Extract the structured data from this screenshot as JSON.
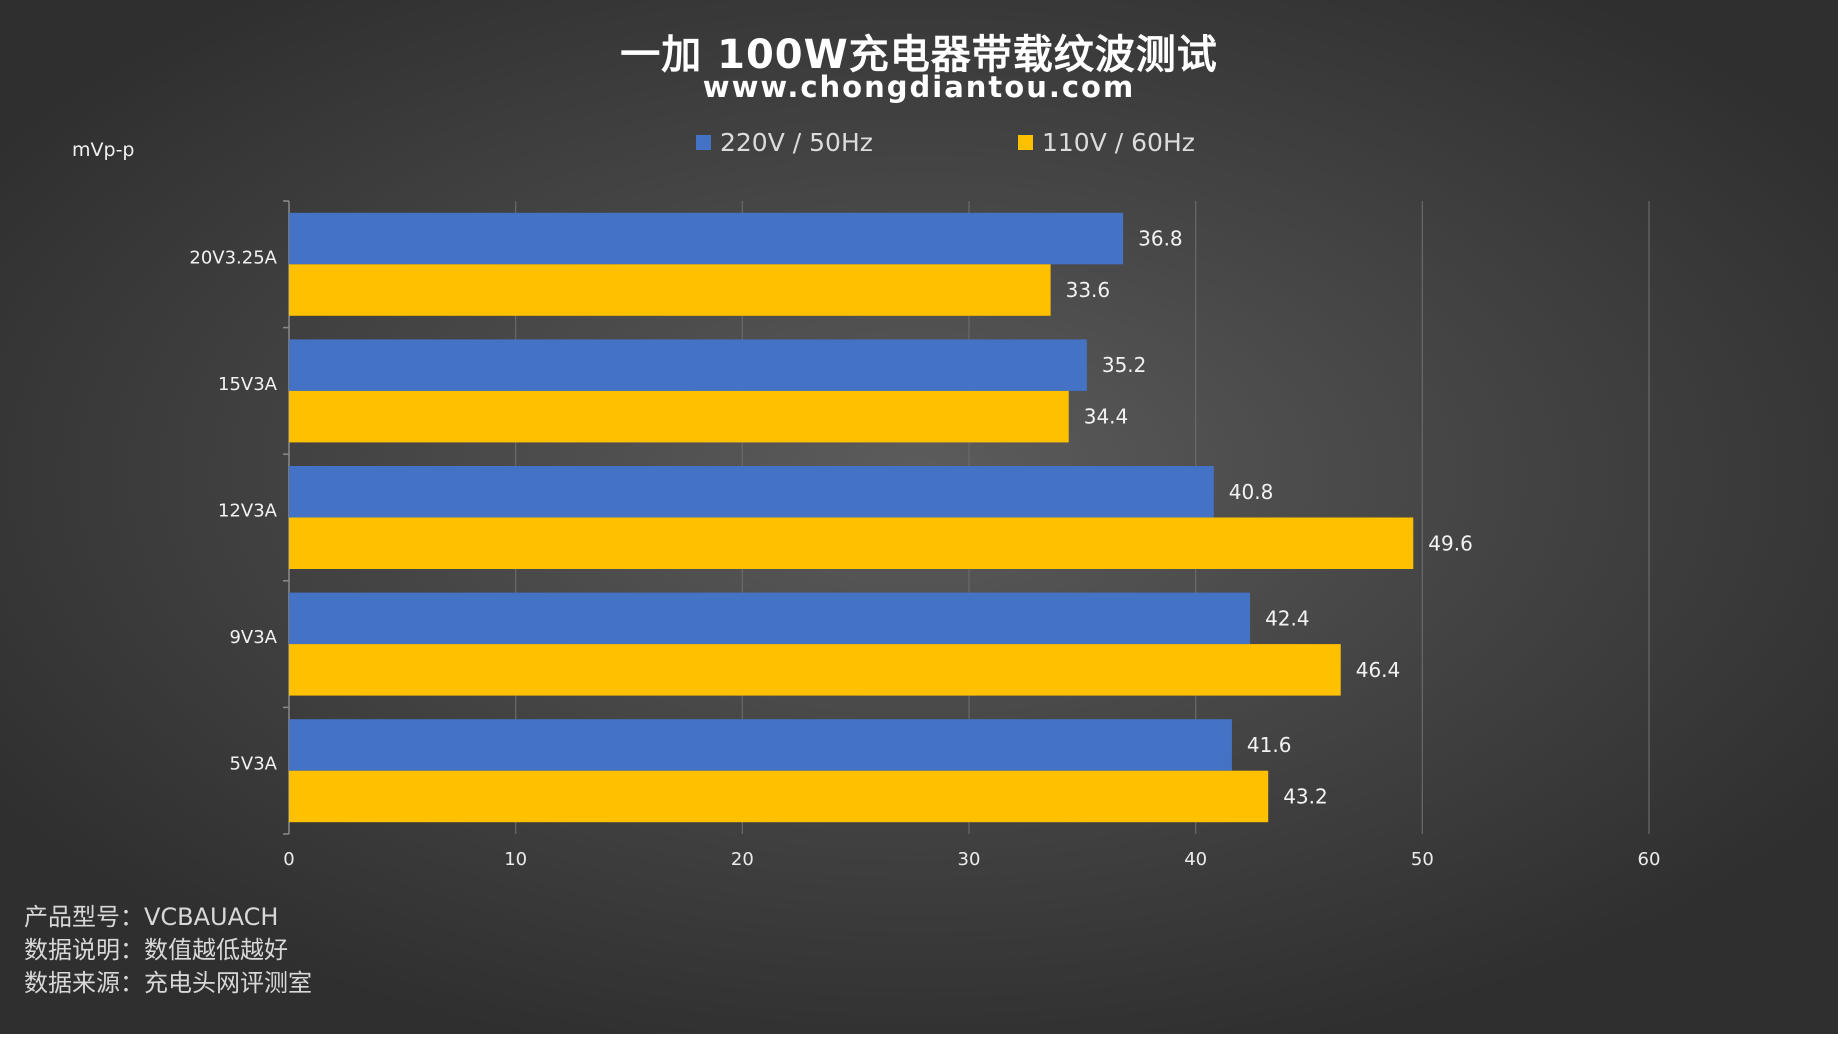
{
  "header": {
    "title": "一加 100W充电器带载纹波测试",
    "subtitle": "www.chongdiantou.com"
  },
  "legend": [
    {
      "label": "220V / 50Hz",
      "color": "#4472c4"
    },
    {
      "label": "110V / 60Hz",
      "color": "#ffc000"
    }
  ],
  "unit_label": "mVp-p",
  "chart_data": {
    "type": "bar",
    "orientation": "horizontal",
    "title": "一加 100W充电器带载纹波测试",
    "subtitle": "www.chongdiantou.com",
    "ylabel": "mVp-p",
    "categories": [
      "20V3.25A",
      "15V3A",
      "12V3A",
      "9V3A",
      "5V3A"
    ],
    "series": [
      {
        "name": "220V / 50Hz",
        "color": "#4472c4",
        "values": [
          36.8,
          35.2,
          40.8,
          42.4,
          41.6
        ]
      },
      {
        "name": "110V / 60Hz",
        "color": "#ffc000",
        "values": [
          33.6,
          34.4,
          49.6,
          46.4,
          43.2
        ]
      }
    ],
    "xlim": [
      0,
      60
    ],
    "xticks": [
      "0",
      "10",
      "20",
      "30",
      "40",
      "50",
      "60"
    ],
    "grid": true,
    "legend_position": "top"
  },
  "footer": {
    "model": "产品型号：VCBAUACH",
    "note": "数据说明：数值越低越好",
    "source": "数据来源：充电头网评测室"
  }
}
